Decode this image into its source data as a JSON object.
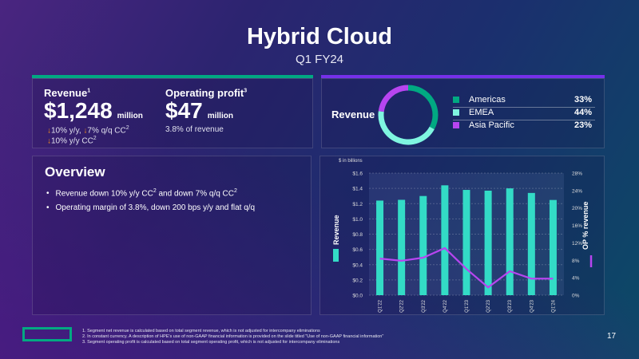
{
  "header": {
    "title": "Hybrid Cloud",
    "subtitle": "Q1 FY24"
  },
  "accent": {
    "green": "#01a982",
    "purple": "#7630ea",
    "teal": "#33dbc6",
    "violet": "#b745f0",
    "orange": "#f08a1c"
  },
  "kpis": {
    "revenue": {
      "label": "Revenue",
      "footnote": "1",
      "value": "$1,248",
      "unit": "million",
      "changes": [
        {
          "icon": "arrow-down-icon",
          "text": "10% y/y,"
        },
        {
          "icon": "arrow-down-icon",
          "text": "7% q/q CC",
          "sup": "2"
        }
      ],
      "changes2": [
        {
          "icon": "arrow-down-icon",
          "text": "10% y/y CC",
          "sup": "2"
        }
      ]
    },
    "op_profit": {
      "label": "Operating profit",
      "footnote": "3",
      "value": "$47",
      "unit": "million",
      "note": "3.8% of revenue"
    }
  },
  "mix": {
    "label": "Revenue",
    "items": [
      {
        "name": "Americas",
        "pct": "33%",
        "value": 33,
        "color": "#01a982"
      },
      {
        "name": "EMEA",
        "pct": "44%",
        "value": 44,
        "color": "#7ff5e0"
      },
      {
        "name": "Asia Pacific",
        "pct": "23%",
        "value": 23,
        "color": "#b745f0"
      }
    ]
  },
  "overview": {
    "title": "Overview",
    "bullets": [
      {
        "a": "Revenue down 10% y/y CC",
        "s1": "2",
        "b": " and down 7% q/q CC",
        "s2": "2"
      },
      {
        "a": "Operating margin of 3.8%, down 200 bps y/y and flat q/q",
        "s1": "",
        "b": "",
        "s2": ""
      }
    ]
  },
  "chart_data": {
    "type": "bar",
    "title": "",
    "unit_note": "$ in billions",
    "categories": [
      "Q1'22",
      "Q2'22",
      "Q3'22",
      "Q4'22",
      "Q1'23",
      "Q2'23",
      "Q3'23",
      "Q4'23",
      "Q1'24"
    ],
    "series": [
      {
        "name": "Revenue",
        "type": "bar",
        "axis": "left",
        "values": [
          1.24,
          1.25,
          1.3,
          1.44,
          1.38,
          1.37,
          1.4,
          1.34,
          1.248
        ]
      },
      {
        "name": "OP % revenue",
        "type": "line",
        "axis": "right",
        "values": [
          8.4,
          7.9,
          8.6,
          10.8,
          6.0,
          1.8,
          5.5,
          3.8,
          3.8
        ]
      }
    ],
    "ylim": [
      0,
      1.6
    ],
    "y2lim": [
      0,
      28
    ],
    "yticks": [
      "$0.0",
      "$0.2",
      "$0.4",
      "$0.6",
      "$0.8",
      "$1.0",
      "$1.2",
      "$1.4",
      "$1.6"
    ],
    "y2ticks": [
      "0%",
      "4%",
      "8%",
      "12%",
      "16%",
      "20%",
      "24%",
      "28%"
    ],
    "ylabel": "Revenue",
    "y2label": "OP % revenue",
    "grid": true
  },
  "footnotes": [
    "1.  Segment net revenue is calculated based on total segment revenue, which is not adjusted for intercompany eliminations",
    "2.  In constant currency. A description of HPE's use of non-GAAP financial information is provided on the slide titled \"Use of non-GAAP financial information\"",
    "3.  Segment operating profit is calculated based on total segment operating profit, which is not adjusted for intercompany eliminations"
  ],
  "page_number": "17"
}
